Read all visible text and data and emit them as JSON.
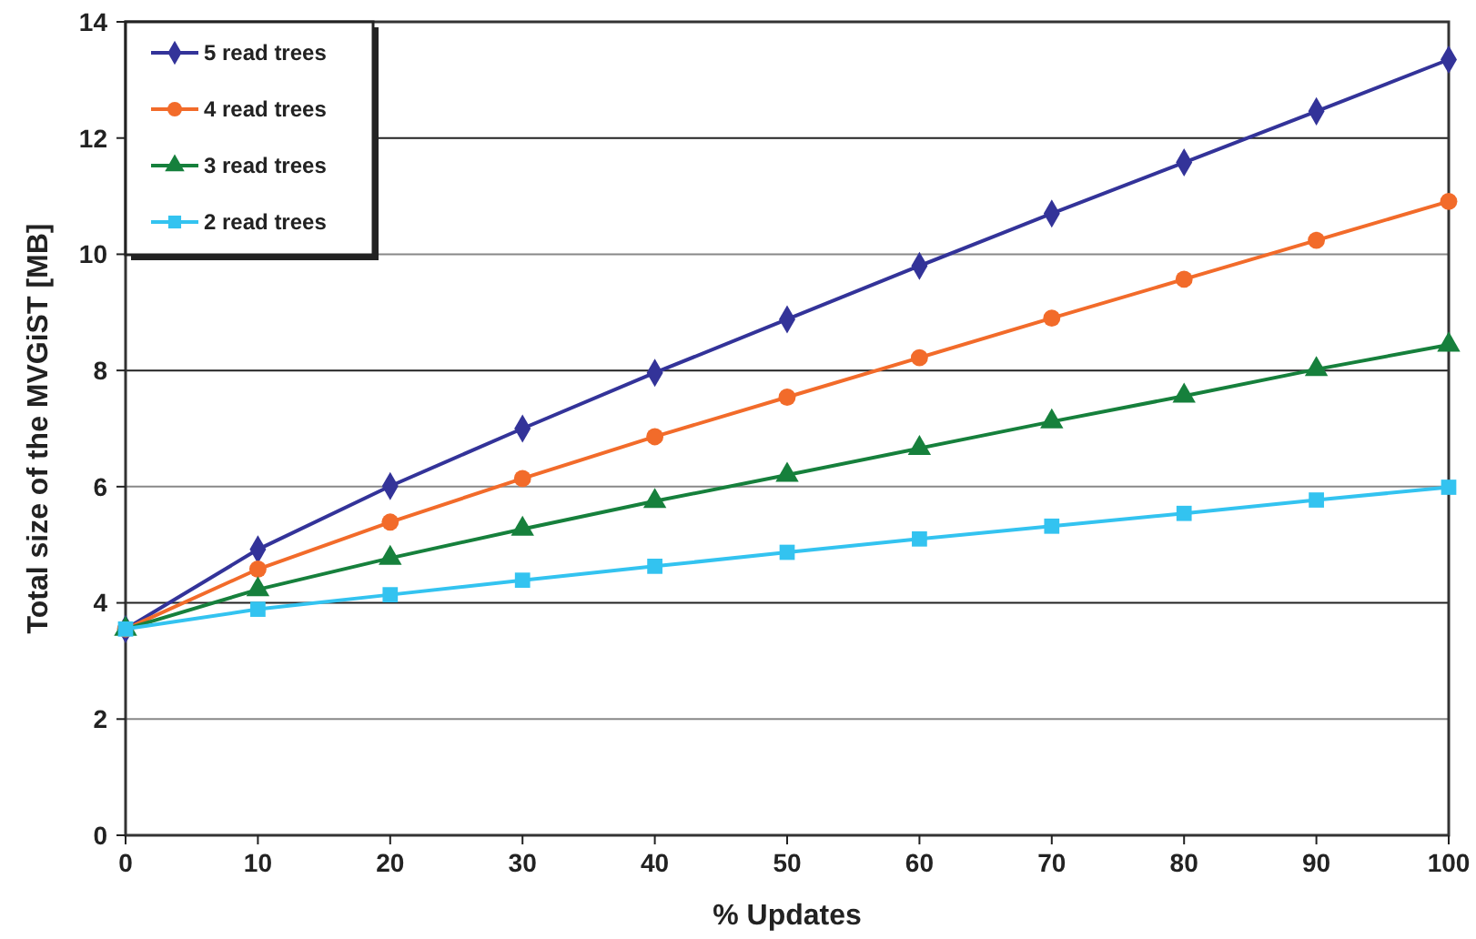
{
  "chart_data": {
    "type": "line",
    "xlabel": "% Updates",
    "ylabel": "Total size of the MVGiST [MB]",
    "x": [
      0,
      10,
      20,
      30,
      40,
      50,
      60,
      70,
      80,
      90,
      100
    ],
    "series": [
      {
        "name": "5 read trees",
        "color": "#333399",
        "marker": "diamond",
        "values": [
          3.55,
          4.92,
          6.01,
          7.0,
          7.96,
          8.88,
          9.8,
          10.7,
          11.58,
          12.46,
          13.35
        ]
      },
      {
        "name": "4 read trees",
        "color": "#f26b2a",
        "marker": "circle",
        "values": [
          3.55,
          4.58,
          5.39,
          6.14,
          6.86,
          7.54,
          8.22,
          8.9,
          9.57,
          10.24,
          10.91
        ]
      },
      {
        "name": "3 read trees",
        "color": "#16803c",
        "marker": "triangle",
        "values": [
          3.55,
          4.23,
          4.77,
          5.27,
          5.75,
          6.2,
          6.66,
          7.12,
          7.56,
          8.02,
          8.44
        ]
      },
      {
        "name": "2 read trees",
        "color": "#33c3f0",
        "marker": "square",
        "values": [
          3.55,
          3.89,
          4.14,
          4.39,
          4.63,
          4.87,
          5.1,
          5.32,
          5.54,
          5.77,
          5.99
        ]
      }
    ],
    "xlim": [
      0,
      100
    ],
    "xticks": [
      0,
      10,
      20,
      30,
      40,
      50,
      60,
      70,
      80,
      90,
      100
    ],
    "ylim": [
      0,
      14
    ],
    "yticks": [
      0,
      2,
      4,
      6,
      8,
      10,
      12,
      14
    ],
    "grid": "y",
    "legend": "top left",
    "line_style": "solid"
  }
}
